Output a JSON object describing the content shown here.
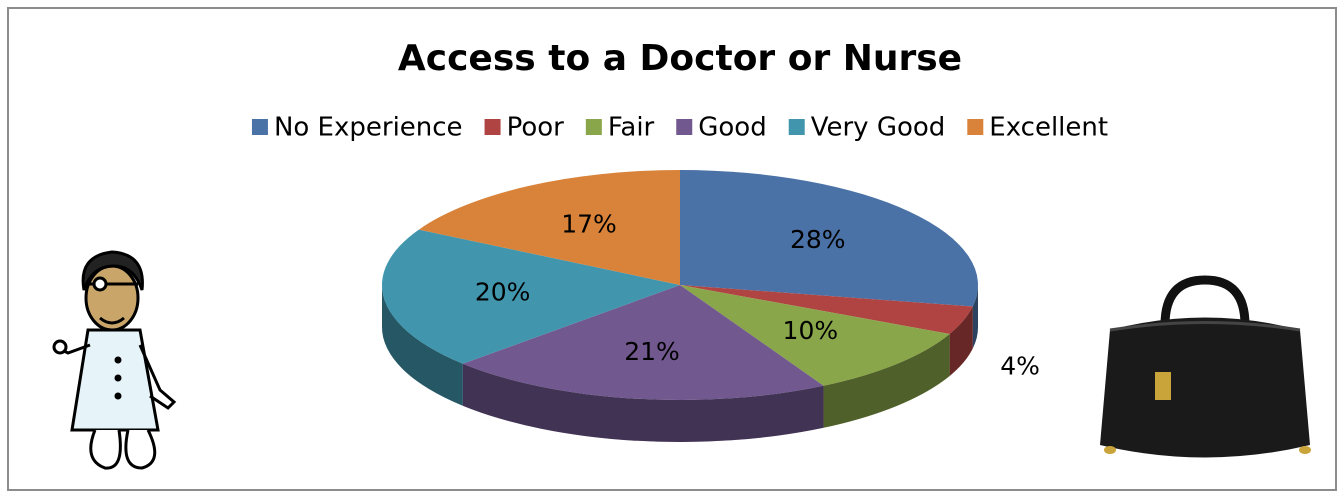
{
  "chart_data": {
    "type": "pie",
    "title": "Access to a Doctor or Nurse",
    "categories": [
      "No Experience",
      "Poor",
      "Fair",
      "Good",
      "Very Good",
      "Excellent"
    ],
    "values": [
      28,
      4,
      10,
      21,
      20,
      17
    ],
    "value_labels": [
      "28%",
      "4%",
      "10%",
      "21%",
      "20%",
      "17%"
    ],
    "colors": [
      "#4a72a6",
      "#b04442",
      "#8aa64a",
      "#71588f",
      "#4196ae",
      "#d9833a"
    ],
    "legend": "top"
  }
}
